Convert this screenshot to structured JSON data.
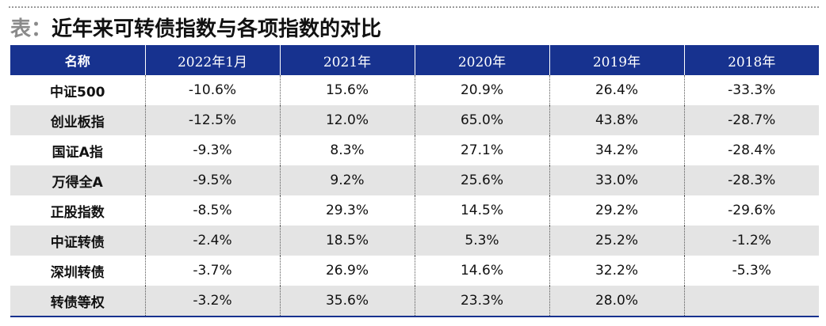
{
  "title": {
    "prefix": "表：",
    "text": "近年来可转债指数与各项指数的对比"
  },
  "table": {
    "headers": [
      "名称",
      "2022年1月",
      "2021年",
      "2020年",
      "2019年",
      "2018年"
    ],
    "rows": [
      [
        "中证500",
        "-10.6%",
        "15.6%",
        "20.9%",
        "26.4%",
        "-33.3%"
      ],
      [
        "创业板指",
        "-12.5%",
        "12.0%",
        "65.0%",
        "43.8%",
        "-28.7%"
      ],
      [
        "国证A指",
        "-9.3%",
        "8.3%",
        "27.1%",
        "34.2%",
        "-28.4%"
      ],
      [
        "万得全A",
        "-9.5%",
        "9.2%",
        "25.6%",
        "33.0%",
        "-28.3%"
      ],
      [
        "正股指数",
        "-8.5%",
        "29.3%",
        "14.5%",
        "29.2%",
        "-29.6%"
      ],
      [
        "中证转债",
        "-2.4%",
        "18.5%",
        "5.3%",
        "25.2%",
        "-1.2%"
      ],
      [
        "深圳转债",
        "-3.7%",
        "26.9%",
        "14.6%",
        "32.2%",
        "-5.3%"
      ],
      [
        "转债等权",
        "-3.2%",
        "35.6%",
        "23.3%",
        "28.0%",
        ""
      ]
    ]
  },
  "colors": {
    "header_bg": "#17328f",
    "stripe_bg": "#e4e4e4",
    "text": "#111111"
  }
}
